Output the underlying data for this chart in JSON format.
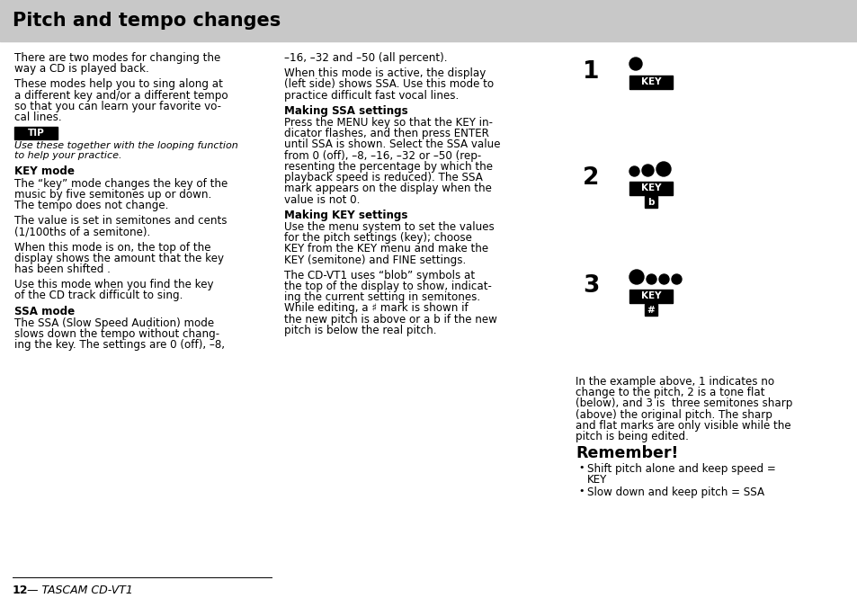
{
  "title": "Pitch and tempo changes",
  "title_bg": "#c8c8c8",
  "title_fg": "#000000",
  "page_bg": "#ffffff",
  "footer_num": "12",
  "footer_rest": " — TASCAM CD-VT1",
  "col1_paragraphs": [
    {
      "type": "body",
      "text": "There are two modes for changing the\nway a CD is played back."
    },
    {
      "type": "body",
      "text": "These modes help you to sing along at\na different key and/or a different tempo\nso that you can learn your favorite vo-\ncal lines."
    },
    {
      "type": "tip",
      "label": "TIP",
      "body": "Use these together with the looping function\nto help your practice."
    },
    {
      "type": "heading",
      "text": "KEY mode"
    },
    {
      "type": "body",
      "text": "The “key” mode changes the key of the\nmusic by five semitones up or down.\nThe tempo does not change."
    },
    {
      "type": "body",
      "text": "The value is set in semitones and cents\n(1/100ths of a semitone)."
    },
    {
      "type": "body",
      "text": "When this mode is on, the top of the\ndisplay shows the amount that the key\nhas been shifted ."
    },
    {
      "type": "body",
      "text": "Use this mode when you find the key\nof the CD track difficult to sing."
    },
    {
      "type": "heading",
      "text": "SSA mode"
    },
    {
      "type": "body",
      "text": "The SSA (Slow Speed Audition) mode\nslows down the tempo without chang-\ning the key. The settings are 0 (off), –8,"
    }
  ],
  "col2_paragraphs": [
    {
      "type": "body",
      "text": "–16, –32 and –50 (all percent)."
    },
    {
      "type": "body",
      "text": "When this mode is active, the display\n(left side) shows SSA. Use this mode to\npractice difficult fast vocal lines."
    },
    {
      "type": "heading",
      "text": "Making SSA settings"
    },
    {
      "type": "body",
      "text": "Press the MENU key so that the KEY in-\ndicator flashes, and then press ENTER\nuntil SSA is shown. Select the SSA value\nfrom 0 (off), –8, –16, –32 or –50 (rep-\nresenting the percentage by which the\nplayback speed is reduced). The SSA\nmark appears on the display when the\nvalue is not 0."
    },
    {
      "type": "heading",
      "text": "Making KEY settings"
    },
    {
      "type": "body",
      "text": "Use the menu system to set the values\nfor the pitch settings (key); choose\nKEY from the KEY menu and make the\nKEY (semitone) and FINE settings."
    },
    {
      "type": "body",
      "text": "The CD-VT1 uses “blob” symbols at\nthe top of the display to show, indicat-\ning the current setting in semitones.\nWhile editing, a ♯ mark is shown if\nthe new pitch is above or a b if the new\npitch is below the real pitch."
    }
  ],
  "col3_diagrams": [
    {
      "number": "1",
      "n_dots": 1,
      "dot_sizes": [
        14
      ],
      "key_label": "KEY",
      "sub_label": ""
    },
    {
      "number": "2",
      "n_dots": 3,
      "dot_sizes": [
        11,
        13,
        16
      ],
      "key_label": "KEY",
      "sub_label": "b"
    },
    {
      "number": "3",
      "n_dots": 4,
      "dot_sizes": [
        16,
        11,
        11,
        11
      ],
      "key_label": "KEY",
      "sub_label": "#"
    }
  ],
  "col3_explanation": "In the example above, 1 indicates no\nchange to the pitch, 2 is a tone flat\n(below), and 3 is  three semitones sharp\n(above) the original pitch. The sharp\nand flat marks are only visible while the\npitch is being edited.",
  "remember_title": "Remember!",
  "remember_items": [
    [
      "Shift pitch alone and keep speed =",
      "KEY"
    ],
    [
      "Slow down and keep pitch = SSA"
    ]
  ]
}
